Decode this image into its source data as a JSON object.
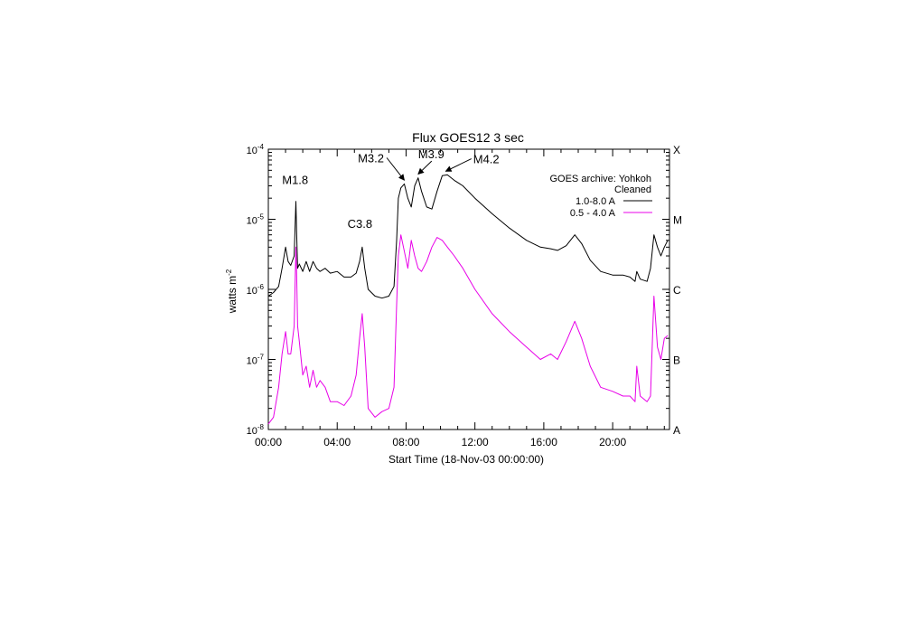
{
  "chart_data": {
    "type": "line",
    "title": "Flux  GOES12 3 sec",
    "xlabel": "Start Time (18-Nov-03 00:00:00)",
    "ylabel": "watts m",
    "ylabel_superscript": "-2",
    "x_unit": "hours",
    "xlim": [
      0,
      23.3
    ],
    "ylim": [
      1e-08,
      0.0001
    ],
    "yscale": "log",
    "x_ticks": [
      {
        "value": 0,
        "label": "00:00"
      },
      {
        "value": 4,
        "label": "04:00"
      },
      {
        "value": 8,
        "label": "08:00"
      },
      {
        "value": 12,
        "label": "12:00"
      },
      {
        "value": 16,
        "label": "16:00"
      },
      {
        "value": 20,
        "label": "20:00"
      }
    ],
    "y_ticks": [
      {
        "value": 0.0001,
        "base": "10",
        "exp": "-4"
      },
      {
        "value": 1e-05,
        "base": "10",
        "exp": "-5"
      },
      {
        "value": 1e-06,
        "base": "10",
        "exp": "-6"
      },
      {
        "value": 1e-07,
        "base": "10",
        "exp": "-7"
      },
      {
        "value": 1e-08,
        "base": "10",
        "exp": "-8"
      }
    ],
    "right_axis_classes": [
      {
        "value": 0.0001,
        "label": "X"
      },
      {
        "value": 1e-05,
        "label": "M"
      },
      {
        "value": 1e-06,
        "label": "C"
      },
      {
        "value": 1e-07,
        "label": "B"
      },
      {
        "value": 1e-08,
        "label": "A"
      }
    ],
    "legend": {
      "placement": "top-right",
      "header": "GOES archive: Yohkoh",
      "subheader": "Cleaned",
      "entries": [
        "1.0-8.0 A",
        "0.5 - 4.0 A"
      ]
    },
    "series": [
      {
        "name": "1.0-8.0 A",
        "color": "#000000",
        "x": [
          0.0,
          0.3,
          0.6,
          0.8,
          1.0,
          1.15,
          1.3,
          1.5,
          1.6,
          1.65,
          1.7,
          1.8,
          2.0,
          2.2,
          2.4,
          2.6,
          2.8,
          3.0,
          3.3,
          3.6,
          4.0,
          4.4,
          4.8,
          5.1,
          5.3,
          5.45,
          5.6,
          5.8,
          6.2,
          6.6,
          7.0,
          7.3,
          7.45,
          7.55,
          7.7,
          7.9,
          8.1,
          8.3,
          8.5,
          8.7,
          8.9,
          9.2,
          9.5,
          9.8,
          10.1,
          10.4,
          10.8,
          11.3,
          12.0,
          13.0,
          14.0,
          15.0,
          15.8,
          16.4,
          16.8,
          17.3,
          17.8,
          18.2,
          18.7,
          19.3,
          20.0,
          20.6,
          21.0,
          21.3,
          21.4,
          21.6,
          22.0,
          22.2,
          22.4,
          22.6,
          22.8,
          23.0,
          23.2
        ],
        "values": [
          8e-07,
          9e-07,
          1.1e-06,
          2e-06,
          4e-06,
          2.5e-06,
          2.2e-06,
          3e-06,
          1.8e-05,
          6e-06,
          2e-06,
          2.3e-06,
          1.8e-06,
          2.5e-06,
          1.8e-06,
          2.5e-06,
          2e-06,
          1.8e-06,
          2e-06,
          1.7e-06,
          1.8e-06,
          1.5e-06,
          1.5e-06,
          1.7e-06,
          2.5e-06,
          4e-06,
          2e-06,
          1e-06,
          8e-07,
          7.5e-07,
          8e-07,
          1.1e-06,
          5e-06,
          2e-05,
          2.8e-05,
          3.2e-05,
          2e-05,
          1.5e-05,
          3e-05,
          3.9e-05,
          2.5e-05,
          1.5e-05,
          1.4e-05,
          2.5e-05,
          4.2e-05,
          4.3e-05,
          3.6e-05,
          3e-05,
          2e-05,
          1.2e-05,
          7.5e-06,
          5e-06,
          4e-06,
          3.8e-06,
          3.6e-06,
          4.2e-06,
          6e-06,
          4.5e-06,
          2.6e-06,
          1.8e-06,
          1.6e-06,
          1.6e-06,
          1.5e-06,
          1.3e-06,
          1.8e-06,
          1.4e-06,
          1.3e-06,
          2e-06,
          6e-06,
          4e-06,
          3e-06,
          4e-06,
          5e-06
        ]
      },
      {
        "name": "0.5 - 4.0 A",
        "color": "#e800e8",
        "x": [
          0.0,
          0.3,
          0.6,
          0.8,
          1.0,
          1.15,
          1.3,
          1.5,
          1.6,
          1.65,
          1.7,
          1.8,
          2.0,
          2.2,
          2.4,
          2.6,
          2.8,
          3.0,
          3.3,
          3.6,
          4.0,
          4.4,
          4.8,
          5.1,
          5.3,
          5.45,
          5.6,
          5.8,
          6.2,
          6.6,
          7.0,
          7.3,
          7.45,
          7.55,
          7.7,
          7.9,
          8.1,
          8.3,
          8.5,
          8.7,
          8.9,
          9.2,
          9.5,
          9.8,
          10.1,
          10.4,
          10.8,
          11.3,
          12.0,
          13.0,
          14.0,
          15.0,
          15.8,
          16.4,
          16.8,
          17.3,
          17.8,
          18.2,
          18.7,
          19.3,
          20.0,
          20.6,
          21.0,
          21.3,
          21.4,
          21.6,
          22.0,
          22.2,
          22.4,
          22.6,
          22.8,
          23.0,
          23.2
        ],
        "values": [
          1.2e-08,
          1.5e-08,
          4e-08,
          1.2e-07,
          2.5e-07,
          1.2e-07,
          1.2e-07,
          3e-07,
          4e-06,
          1.5e-06,
          3e-07,
          1.8e-07,
          6e-08,
          8e-08,
          4e-08,
          7e-08,
          4e-08,
          5e-08,
          4e-08,
          2.5e-08,
          2.5e-08,
          2.2e-08,
          3e-08,
          6e-08,
          2e-07,
          4.5e-07,
          1.5e-07,
          2e-08,
          1.5e-08,
          1.8e-08,
          2e-08,
          4e-08,
          6e-07,
          3e-06,
          6e-06,
          3.5e-06,
          2e-06,
          5e-06,
          3e-06,
          2e-06,
          1.8e-06,
          2.5e-06,
          4e-06,
          5.5e-06,
          5e-06,
          4e-06,
          3e-06,
          2e-06,
          1e-06,
          4.5e-07,
          2.5e-07,
          1.5e-07,
          1e-07,
          1.2e-07,
          1e-07,
          1.8e-07,
          3.5e-07,
          2e-07,
          8e-08,
          4e-08,
          3.5e-08,
          3e-08,
          3e-08,
          2.5e-08,
          8e-08,
          3e-08,
          2.5e-08,
          3e-08,
          8e-07,
          1.5e-07,
          1e-07,
          2e-07,
          2.2e-07
        ]
      }
    ],
    "annotations": [
      {
        "label": "M1.8",
        "x": 1.6,
        "y": 1.8e-05,
        "arrow": false,
        "text_x": 0.8,
        "text_y": 3.2e-05
      },
      {
        "label": "C3.8",
        "x": 5.45,
        "y": 4e-06,
        "arrow": false,
        "text_x": 4.6,
        "text_y": 7.5e-06
      },
      {
        "label": "M3.2",
        "x": 7.9,
        "y": 3.2e-05,
        "arrow": true,
        "text_x": 5.2,
        "text_y": 6.5e-05
      },
      {
        "label": "M3.9",
        "x": 8.7,
        "y": 3.9e-05,
        "arrow": true,
        "text_x": 8.7,
        "text_y": 7.4e-05
      },
      {
        "label": "M4.2",
        "x": 10.3,
        "y": 4.3e-05,
        "arrow": true,
        "text_x": 11.9,
        "text_y": 6.3e-05
      }
    ]
  }
}
